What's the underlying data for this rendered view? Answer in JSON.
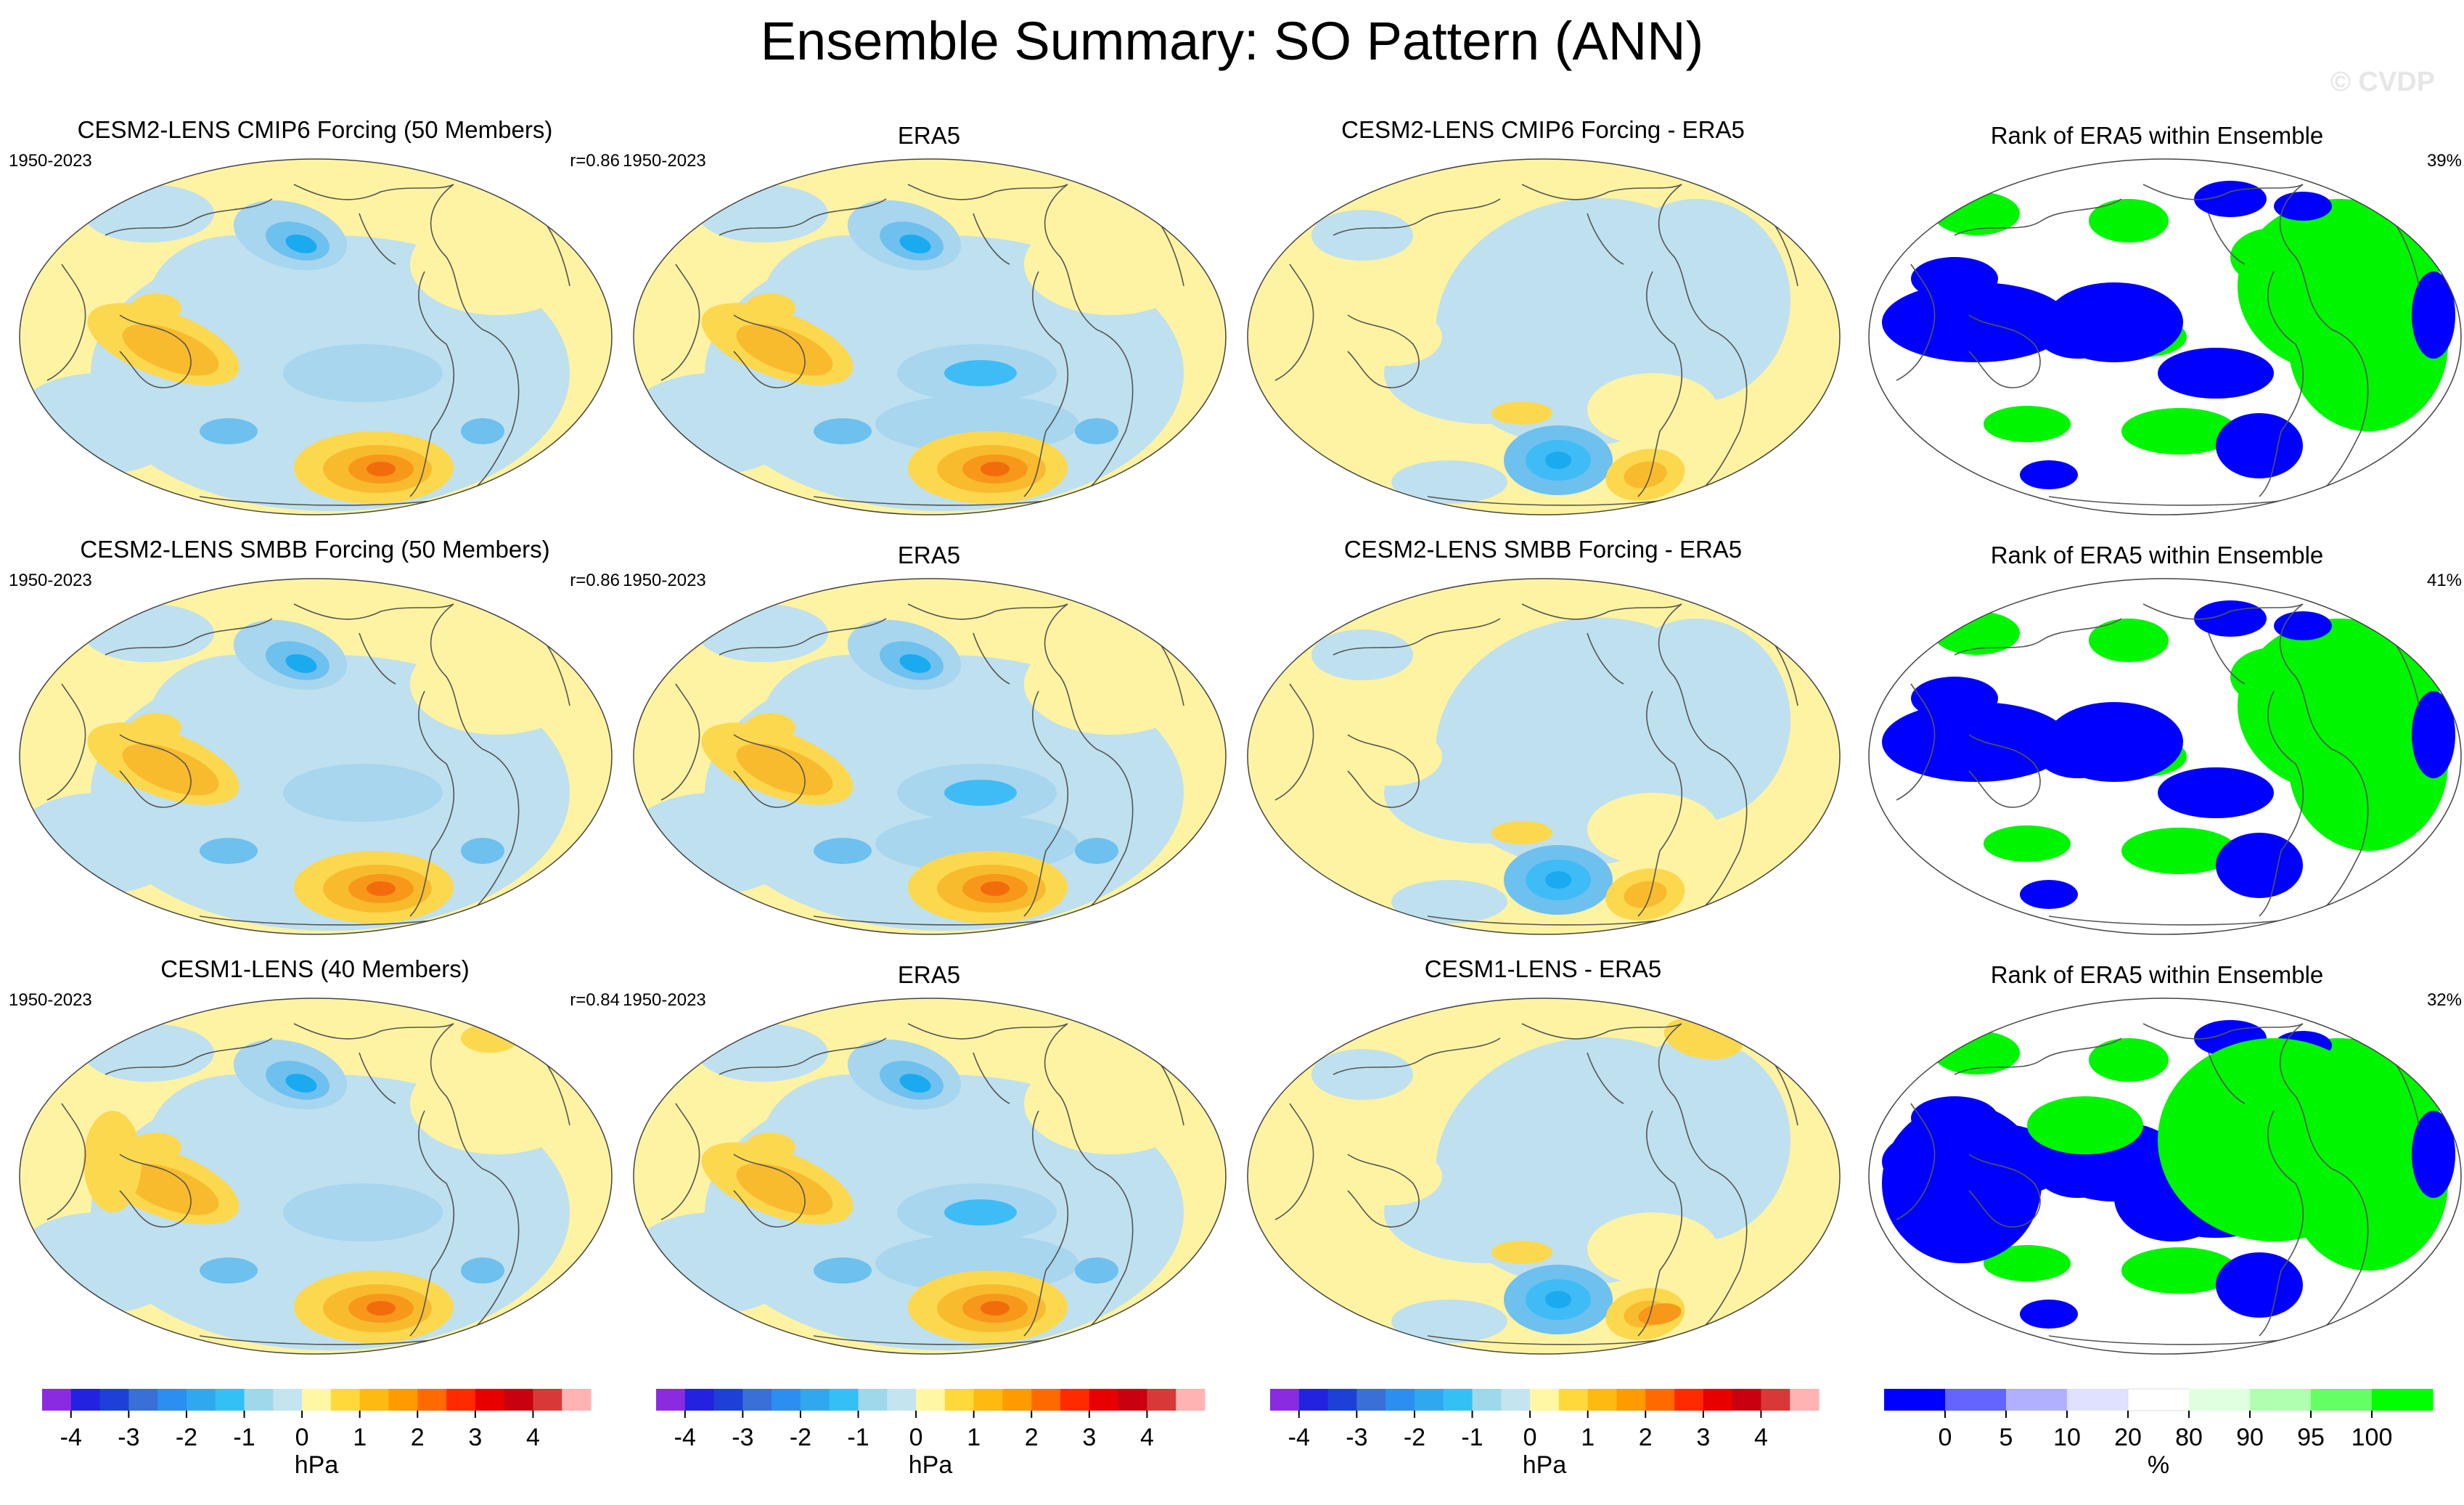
{
  "title": "Ensemble Summary: SO Pattern (ANN)",
  "watermark": "© CVDP",
  "colors": {
    "neg4": "#1aaaf0",
    "neg3": "#3fbcf5",
    "neg2": "#6ec0ee",
    "neg1": "#a7d6ee",
    "neg0": "#bfe0ef",
    "zero": "#fef3a2",
    "pos1": "#fcd84f",
    "pos2": "#f9bb2e",
    "pos3": "#f7981b",
    "pos4": "#f26c0c",
    "rank_blue": "#0000ff",
    "rank_green": "#00f500",
    "rank_white": "#ffffff"
  },
  "rows": [
    {
      "ens_title": "CESM2-LENS CMIP6 Forcing (50 Members)",
      "ens_period": "1950-2023",
      "ens_r": "r=0.86",
      "obs_title": "ERA5",
      "obs_period": "1950-2023",
      "diff_title": "CESM2-LENS CMIP6 Forcing - ERA5",
      "rank_title": "Rank of ERA5 within Ensemble",
      "rank_pct": "39%"
    },
    {
      "ens_title": "CESM2-LENS SMBB Forcing (50 Members)",
      "ens_period": "1950-2023",
      "ens_r": "r=0.86",
      "obs_title": "ERA5",
      "obs_period": "1950-2023",
      "diff_title": "CESM2-LENS SMBB Forcing - ERA5",
      "rank_title": "Rank of ERA5 within Ensemble",
      "rank_pct": "41%"
    },
    {
      "ens_title": "CESM1-LENS (40 Members)",
      "ens_period": "1950-2023",
      "ens_r": "r=0.84",
      "obs_title": "ERA5",
      "obs_period": "1950-2023",
      "diff_title": "CESM1-LENS - ERA5",
      "rank_title": "Rank of ERA5 within Ensemble",
      "rank_pct": "32%"
    }
  ],
  "chart_data": [
    {
      "type": "heatmap",
      "description_role": "pressure colorbar (used by columns 1-3)",
      "units": "hPa",
      "levels": [
        -4,
        -3.5,
        -3,
        -2.5,
        -2,
        -1.5,
        -1,
        -0.5,
        0,
        0.5,
        1,
        1.5,
        2,
        2.5,
        3,
        3.5,
        4
      ],
      "tick_labels": [
        "-4",
        "-3",
        "-2",
        "-1",
        "0",
        "1",
        "2",
        "3",
        "4"
      ],
      "colors": [
        "#8a2be2",
        "#2222e0",
        "#1e40d8",
        "#3a6fd8",
        "#2a8ff0",
        "#30a8f0",
        "#33c1f5",
        "#9fd8ea",
        "#c4e4f0",
        "#fff7a4",
        "#ffd83a",
        "#ffba12",
        "#ff9a00",
        "#ff6a00",
        "#ff2a00",
        "#e80000",
        "#c80010",
        "#d83838",
        "#ffb3b3"
      ]
    },
    {
      "type": "heatmap",
      "description_role": "rank colorbar (column 4)",
      "units": "%",
      "tick_labels": [
        "0",
        "5",
        "10",
        "20",
        "80",
        "90",
        "95",
        "100"
      ],
      "colors": [
        "#0000ff",
        "#6464ff",
        "#b0b0ff",
        "#e0e0ff",
        "#ffffff",
        "#e0ffe0",
        "#b0ffb0",
        "#64ff64",
        "#00ff00"
      ]
    }
  ]
}
